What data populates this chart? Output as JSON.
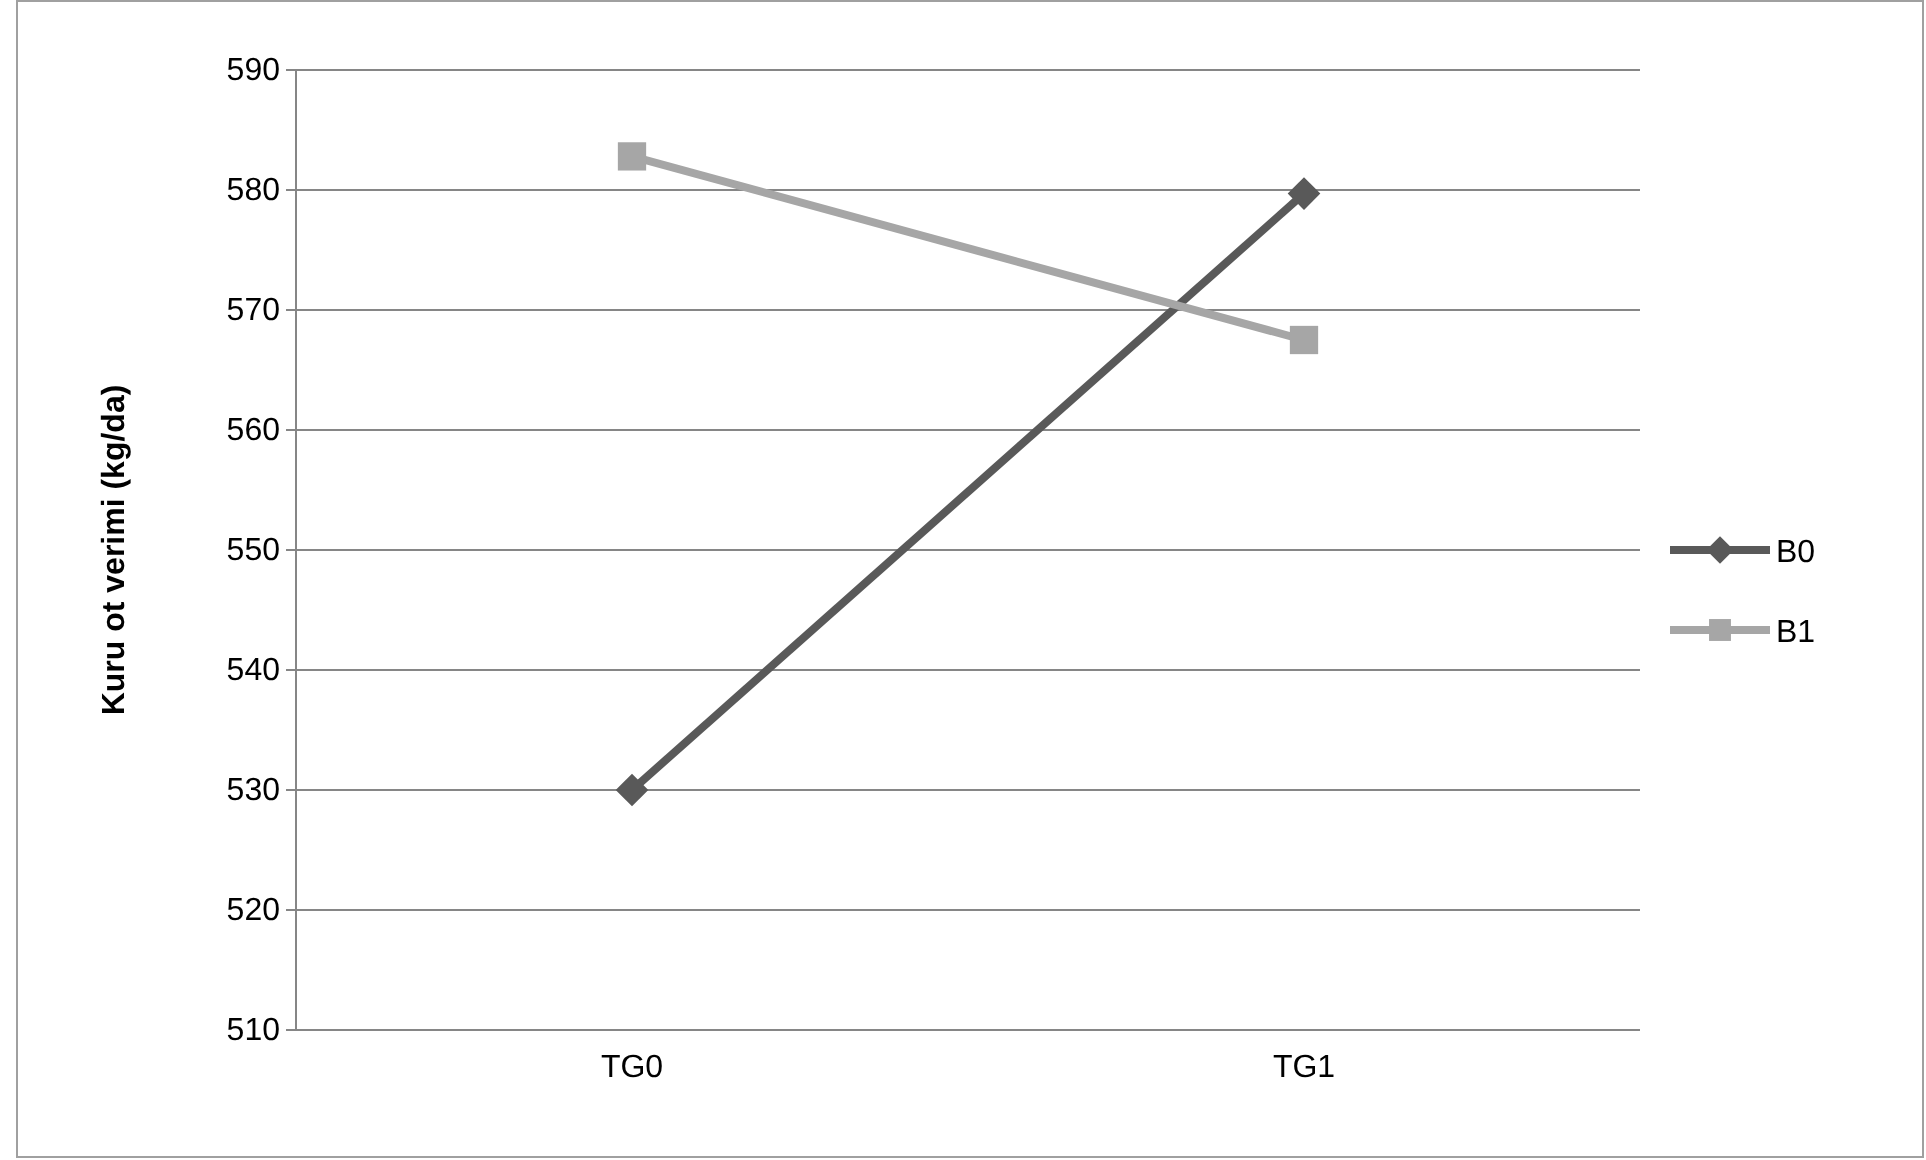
{
  "chart_data": {
    "type": "line",
    "ylabel": "Kuru ot verimi (kg/da)",
    "categories": [
      "TG0",
      "TG1"
    ],
    "series": [
      {
        "name": "B0",
        "color": "#595959",
        "values": [
          530,
          579.7
        ],
        "marker": "diamond"
      },
      {
        "name": "B1",
        "color": "#a6a6a6",
        "values": [
          582.8,
          567.5
        ],
        "marker": "square"
      }
    ],
    "ylim": [
      510,
      590
    ],
    "yticks": [
      510,
      520,
      530,
      540,
      550,
      560,
      570,
      580,
      590
    ],
    "grid": "y",
    "legend": "right",
    "line_style": "solid"
  }
}
